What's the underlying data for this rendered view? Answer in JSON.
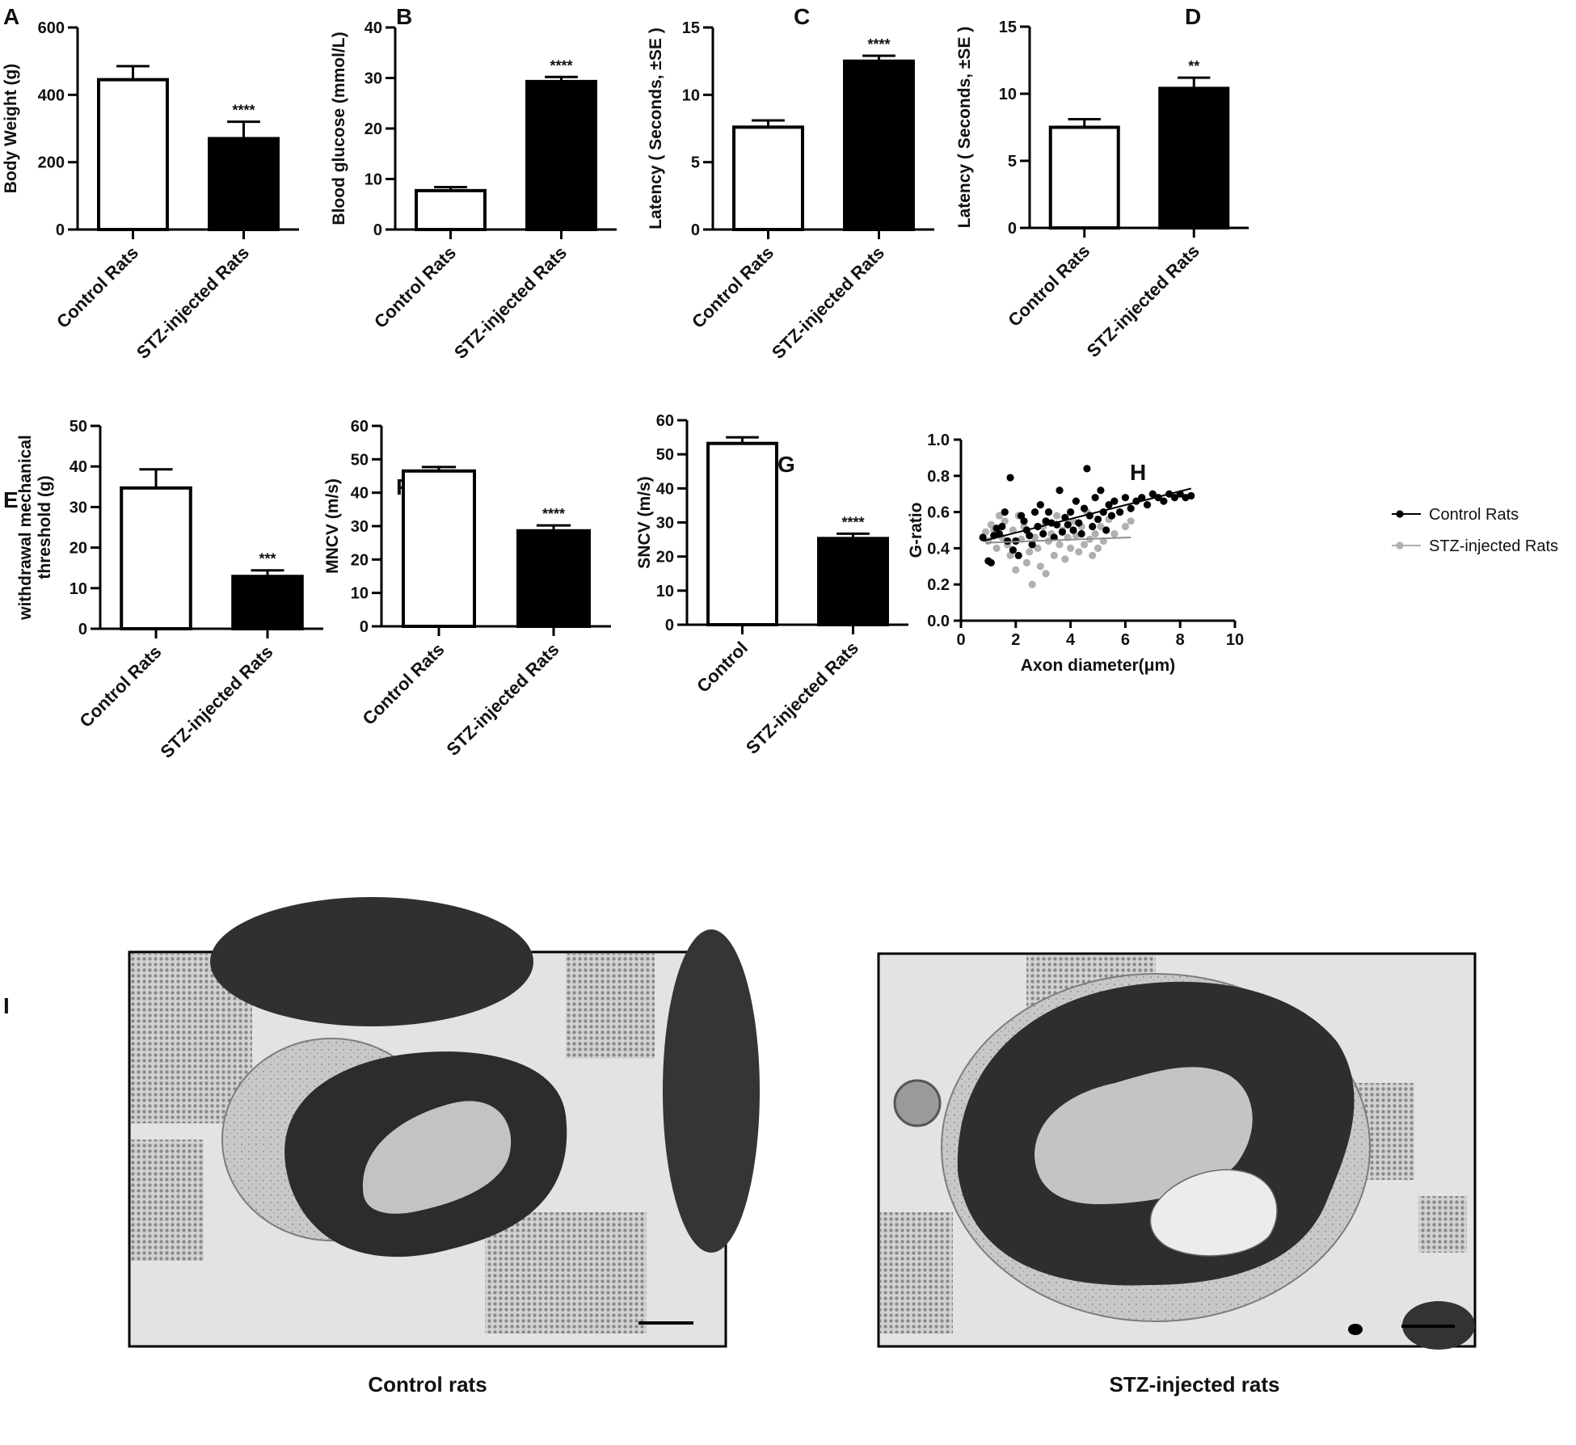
{
  "chart_data": [
    {
      "panel": "A",
      "type": "bar",
      "ylabel": "Body  Weight (g)",
      "ylim": [
        0,
        600
      ],
      "yticks": [
        0,
        200,
        400,
        600
      ],
      "categories": [
        "Control Rats",
        "STZ-injected Rats"
      ],
      "values": [
        445,
        270
      ],
      "errors": [
        40,
        50
      ],
      "fills": [
        "#ffffff",
        "#000000"
      ],
      "significance": [
        "",
        "****"
      ]
    },
    {
      "panel": "B",
      "type": "bar",
      "ylabel": "Blood glucose  (mmol/L)",
      "ylim": [
        0,
        40
      ],
      "yticks": [
        0,
        10,
        20,
        30,
        40
      ],
      "categories": [
        "Control Rats",
        "STZ-injected Rats"
      ],
      "values": [
        7.7,
        29.3
      ],
      "errors": [
        0.7,
        0.9
      ],
      "fills": [
        "#ffffff",
        "#000000"
      ],
      "significance": [
        "",
        "****"
      ]
    },
    {
      "panel": "C",
      "type": "bar",
      "ylabel": "Latency ( Seconds,  ±SE )",
      "ylim": [
        0,
        15
      ],
      "yticks": [
        0,
        5,
        10,
        15
      ],
      "categories": [
        "Control Rats",
        "STZ-injected Rats"
      ],
      "values": [
        7.6,
        12.5
      ],
      "errors": [
        0.5,
        0.4
      ],
      "fills": [
        "#ffffff",
        "#000000"
      ],
      "significance": [
        "",
        "****"
      ]
    },
    {
      "panel": "D",
      "type": "bar",
      "ylabel": "Latency ( Seconds,  ±SE )",
      "ylim": [
        0,
        15
      ],
      "yticks": [
        0,
        5,
        10,
        15
      ],
      "categories": [
        "Control Rats",
        "STZ-injected Rats"
      ],
      "values": [
        7.5,
        10.4
      ],
      "errors": [
        0.6,
        0.8
      ],
      "fills": [
        "#ffffff",
        "#000000"
      ],
      "significance": [
        "",
        "**"
      ]
    },
    {
      "panel": "E",
      "type": "bar",
      "ylabel": [
        "withdrawal mechanical",
        "threshold (g)"
      ],
      "ylim": [
        0,
        50
      ],
      "yticks": [
        0,
        10,
        20,
        30,
        40,
        50
      ],
      "categories": [
        "Control Rats",
        "STZ-injected Rats"
      ],
      "values": [
        34.7,
        12.9
      ],
      "errors": [
        4.6,
        1.5
      ],
      "fills": [
        "#ffffff",
        "#000000"
      ],
      "significance": [
        "",
        "***"
      ]
    },
    {
      "panel": "F",
      "type": "bar",
      "ylabel": "MNCV (m/s)",
      "ylim": [
        0,
        60
      ],
      "yticks": [
        0,
        10,
        20,
        30,
        40,
        50,
        60
      ],
      "categories": [
        "Control Rats",
        "STZ-injected Rats"
      ],
      "values": [
        46.5,
        28.6
      ],
      "errors": [
        1.2,
        1.6
      ],
      "fills": [
        "#ffffff",
        "#000000"
      ],
      "significance": [
        "",
        "****"
      ]
    },
    {
      "panel": "G",
      "type": "bar",
      "ylabel": "SNCV (m/s)",
      "ylim": [
        0,
        60
      ],
      "yticks": [
        0,
        10,
        20,
        30,
        40,
        50,
        60
      ],
      "categories": [
        "Control",
        "STZ-injected Rats"
      ],
      "values": [
        53.2,
        25.3
      ],
      "errors": [
        1.8,
        1.4
      ],
      "fills": [
        "#ffffff",
        "#000000"
      ],
      "significance": [
        "",
        "****"
      ]
    },
    {
      "panel": "H",
      "type": "scatter",
      "xlabel": "Axon diameter(μm)",
      "ylabel": "G-ratio",
      "xlim": [
        0,
        10
      ],
      "ylim": [
        0,
        1.0
      ],
      "xticks": [
        0,
        2,
        4,
        6,
        8,
        10
      ],
      "yticks": [
        0.0,
        0.2,
        0.4,
        0.6,
        0.8,
        1.0
      ],
      "ytick_labels": [
        "0.0",
        "0.2",
        "0.4",
        "0.6",
        "0.8",
        "1.0"
      ],
      "legend_position": "top-right",
      "series": [
        {
          "name": "Control Rats",
          "color": "#000000",
          "fit": [
            [
              0.8,
              0.44
            ],
            [
              8.4,
              0.73
            ]
          ],
          "points": [
            [
              0.8,
              0.46
            ],
            [
              1.0,
              0.33
            ],
            [
              1.1,
              0.32
            ],
            [
              1.2,
              0.47
            ],
            [
              1.3,
              0.51
            ],
            [
              1.4,
              0.48
            ],
            [
              1.5,
              0.52
            ],
            [
              1.6,
              0.6
            ],
            [
              1.7,
              0.44
            ],
            [
              1.8,
              0.79
            ],
            [
              1.9,
              0.39
            ],
            [
              2.0,
              0.44
            ],
            [
              2.1,
              0.36
            ],
            [
              2.2,
              0.58
            ],
            [
              2.3,
              0.55
            ],
            [
              2.4,
              0.5
            ],
            [
              2.5,
              0.47
            ],
            [
              2.6,
              0.42
            ],
            [
              2.7,
              0.6
            ],
            [
              2.8,
              0.52
            ],
            [
              2.9,
              0.64
            ],
            [
              3.0,
              0.48
            ],
            [
              3.1,
              0.55
            ],
            [
              3.2,
              0.6
            ],
            [
              3.3,
              0.54
            ],
            [
              3.4,
              0.46
            ],
            [
              3.5,
              0.53
            ],
            [
              3.6,
              0.72
            ],
            [
              3.7,
              0.49
            ],
            [
              3.8,
              0.57
            ],
            [
              3.9,
              0.53
            ],
            [
              4.0,
              0.6
            ],
            [
              4.1,
              0.5
            ],
            [
              4.2,
              0.66
            ],
            [
              4.3,
              0.54
            ],
            [
              4.4,
              0.48
            ],
            [
              4.5,
              0.62
            ],
            [
              4.6,
              0.84
            ],
            [
              4.7,
              0.58
            ],
            [
              4.8,
              0.52
            ],
            [
              4.9,
              0.68
            ],
            [
              5.0,
              0.56
            ],
            [
              5.1,
              0.72
            ],
            [
              5.2,
              0.6
            ],
            [
              5.3,
              0.5
            ],
            [
              5.4,
              0.64
            ],
            [
              5.5,
              0.58
            ],
            [
              5.6,
              0.66
            ],
            [
              5.8,
              0.6
            ],
            [
              6.0,
              0.68
            ],
            [
              6.2,
              0.62
            ],
            [
              6.4,
              0.66
            ],
            [
              6.6,
              0.68
            ],
            [
              6.8,
              0.64
            ],
            [
              7.0,
              0.7
            ],
            [
              7.2,
              0.68
            ],
            [
              7.4,
              0.66
            ],
            [
              7.6,
              0.7
            ],
            [
              7.8,
              0.68
            ],
            [
              8.0,
              0.7
            ],
            [
              8.2,
              0.68
            ],
            [
              8.4,
              0.69
            ]
          ]
        },
        {
          "name": "STZ-injected Rats",
          "color": "#b0b0b0",
          "fit": [
            [
              0.9,
              0.43
            ],
            [
              6.2,
              0.46
            ]
          ],
          "points": [
            [
              0.9,
              0.49
            ],
            [
              1.0,
              0.44
            ],
            [
              1.1,
              0.53
            ],
            [
              1.2,
              0.5
            ],
            [
              1.3,
              0.4
            ],
            [
              1.4,
              0.58
            ],
            [
              1.5,
              0.46
            ],
            [
              1.6,
              0.55
            ],
            [
              1.7,
              0.42
            ],
            [
              1.8,
              0.36
            ],
            [
              1.9,
              0.5
            ],
            [
              2.0,
              0.28
            ],
            [
              2.1,
              0.58
            ],
            [
              2.2,
              0.45
            ],
            [
              2.3,
              0.52
            ],
            [
              2.4,
              0.32
            ],
            [
              2.5,
              0.38
            ],
            [
              2.6,
              0.2
            ],
            [
              2.7,
              0.46
            ],
            [
              2.8,
              0.4
            ],
            [
              2.9,
              0.3
            ],
            [
              3.0,
              0.52
            ],
            [
              3.1,
              0.26
            ],
            [
              3.2,
              0.44
            ],
            [
              3.3,
              0.48
            ],
            [
              3.4,
              0.36
            ],
            [
              3.5,
              0.58
            ],
            [
              3.6,
              0.42
            ],
            [
              3.7,
              0.5
            ],
            [
              3.8,
              0.34
            ],
            [
              3.9,
              0.46
            ],
            [
              4.0,
              0.4
            ],
            [
              4.1,
              0.55
            ],
            [
              4.2,
              0.47
            ],
            [
              4.3,
              0.38
            ],
            [
              4.4,
              0.52
            ],
            [
              4.5,
              0.42
            ],
            [
              4.6,
              0.6
            ],
            [
              4.7,
              0.45
            ],
            [
              4.8,
              0.36
            ],
            [
              4.9,
              0.48
            ],
            [
              5.0,
              0.4
            ],
            [
              5.1,
              0.52
            ],
            [
              5.2,
              0.44
            ],
            [
              5.4,
              0.56
            ],
            [
              5.6,
              0.48
            ],
            [
              5.8,
              0.6
            ],
            [
              6.0,
              0.52
            ],
            [
              6.2,
              0.55
            ]
          ]
        }
      ]
    }
  ],
  "panel_labels": [
    "A",
    "B",
    "C",
    "D",
    "E",
    "F",
    "G",
    "H",
    "I"
  ],
  "micrographs": {
    "control_caption": "Control rats",
    "stz_caption": "STZ-injected rats"
  }
}
